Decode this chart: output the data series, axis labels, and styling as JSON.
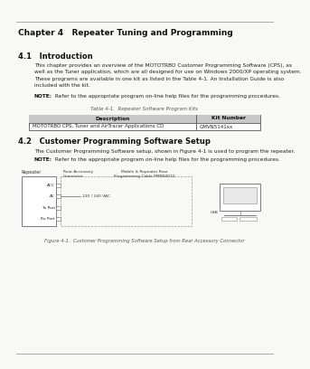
{
  "bg_color": "#f8f8f6",
  "title": "Chapter 4   Repeater Tuning and Programming",
  "section41_title": "4.1   Introduction",
  "section41_body_lines": [
    "This chapter provides an overview of the MOTOTRBO Customer Programming Software (CPS), as",
    "well as the Tuner application, which are all designed for use on Windows 2000/XP operating system.",
    "These programs are available in one kit as listed in the Table 4-1. An Installation Guide is also",
    "included with the kit."
  ],
  "note1_bold": "NOTE:",
  "note1_text": "  Refer to the appropriate program on-line help files for the programming procedures.",
  "table_title": "Table 4-1.  Repeater Software Program Kits",
  "table_header": [
    "Description",
    "Kit Number"
  ],
  "table_row": [
    "MOTOTRBO CPS, Tuner and AirTracer Applications CD",
    "GMVN5141xx"
  ],
  "section42_title": "4.2   Customer Programming Software Setup",
  "section42_body": "The Customer Programming Software setup, shown in Figure 4-1 is used to program the repeater.",
  "note2_bold": "NOTE:",
  "note2_text": "  Refer to the appropriate program on-line help files for the programming procedures.",
  "fig_caption": "Figure 4-1.  Customer Programming Software Setup from Rear Accessory Connector",
  "repeater_label": "Repeater",
  "connector_label": "Rear Accessory\nConnector",
  "cable_label": "Mobile & Repeater Rear\nProgramming Cable PMKN4010",
  "port_labels": [
    "ACC",
    "AC",
    "Tx Port",
    "Rx Port"
  ],
  "ac_text": "120 / 240 VAC",
  "usb_label": "USB"
}
